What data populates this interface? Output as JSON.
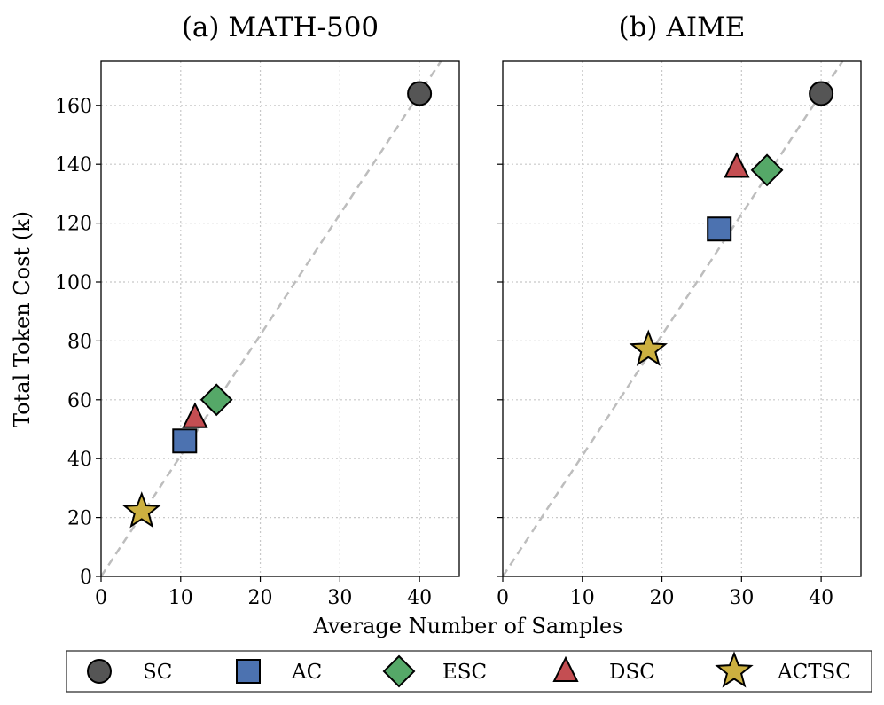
{
  "chart_data": [
    {
      "type": "scatter",
      "title": "(a) MATH-500",
      "xlabel": "Average Number of Samples",
      "ylabel": "Total Token Cost (k)",
      "xlim": [
        0,
        45
      ],
      "ylim": [
        0,
        175
      ],
      "xticks": [
        0,
        10,
        20,
        30,
        40
      ],
      "yticks": [
        0,
        20,
        40,
        60,
        80,
        100,
        120,
        140,
        160
      ],
      "grid": true,
      "reference_line": {
        "style": "dashed",
        "slope": 4.1,
        "label": ""
      },
      "series": [
        {
          "name": "SC",
          "x": 40.0,
          "y": 164
        },
        {
          "name": "AC",
          "x": 10.5,
          "y": 46
        },
        {
          "name": "ESC",
          "x": 14.5,
          "y": 60
        },
        {
          "name": "DSC",
          "x": 11.8,
          "y": 54
        },
        {
          "name": "ACTSC",
          "x": 5.1,
          "y": 22
        }
      ]
    },
    {
      "type": "scatter",
      "title": "(b) AIME",
      "xlabel": "Average Number of Samples",
      "ylabel": "Total Token Cost (k)",
      "xlim": [
        0,
        45
      ],
      "ylim": [
        0,
        175
      ],
      "xticks": [
        0,
        10,
        20,
        30,
        40
      ],
      "yticks": [
        0,
        20,
        40,
        60,
        80,
        100,
        120,
        140,
        160
      ],
      "grid": true,
      "reference_line": {
        "style": "dashed",
        "slope": 4.1,
        "label": ""
      },
      "series": [
        {
          "name": "SC",
          "x": 40.0,
          "y": 164
        },
        {
          "name": "AC",
          "x": 27.2,
          "y": 118
        },
        {
          "name": "ESC",
          "x": 33.2,
          "y": 138
        },
        {
          "name": "DSC",
          "x": 29.4,
          "y": 139
        },
        {
          "name": "ACTSC",
          "x": 18.3,
          "y": 77
        }
      ]
    }
  ],
  "legend": {
    "placement": "bottom",
    "items": [
      {
        "name": "SC",
        "marker": "circle",
        "color": "#555555"
      },
      {
        "name": "AC",
        "marker": "square",
        "color": "#4c72b0"
      },
      {
        "name": "ESC",
        "marker": "diamond",
        "color": "#55a868"
      },
      {
        "name": "DSC",
        "marker": "triangle",
        "color": "#c44e52"
      },
      {
        "name": "ACTSC",
        "marker": "star",
        "color": "#ccb040"
      }
    ]
  },
  "colors": {
    "grid": "#c8c8c8",
    "reference": "#bdbdbd",
    "edge": "#000000"
  }
}
